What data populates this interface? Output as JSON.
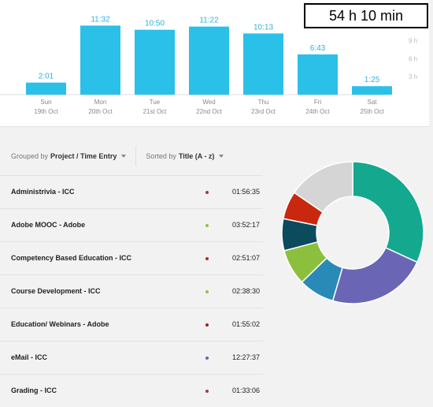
{
  "total": {
    "label": "54 h 10 min"
  },
  "chart_data": {
    "type": "bar",
    "categories": [
      "Sun",
      "Mon",
      "Tue",
      "Wed",
      "Thu",
      "Fri",
      "Sat"
    ],
    "dates": [
      "19th Oct",
      "20th Oct",
      "21st Oct",
      "22nd Oct",
      "23rd Oct",
      "24th Oct",
      "25th Oct"
    ],
    "values": [
      2.017,
      11.533,
      10.833,
      11.367,
      10.217,
      6.717,
      1.417
    ],
    "value_labels": [
      "2:01",
      "11:32",
      "10:50",
      "11:22",
      "10:13",
      "6:43",
      "1:25"
    ],
    "y_ticks": [
      "3 h",
      "6 h",
      "9 h"
    ],
    "ylim": [
      0,
      15.8
    ],
    "bar_color": "#2bc0e8"
  },
  "toolbar": {
    "grouped_label": "Grouped by",
    "grouped_value": "Project / Time Entry",
    "sorted_label": "Sorted by",
    "sorted_value": "Title (A - z)"
  },
  "entries": [
    {
      "name": "Administrivia - ICC",
      "time": "01:56:35",
      "color": "#9b3a5a"
    },
    {
      "name": "Adobe MOOC - Adobe",
      "time": "03:52:17",
      "color": "#8cc63e"
    },
    {
      "name": "Competency Based Education - ICC",
      "time": "02:51:07",
      "color": "#c0281c"
    },
    {
      "name": "Course Development - ICC",
      "time": "02:38:30",
      "color": "#8cc63e"
    },
    {
      "name": "Education/ Webinars - Adobe",
      "time": "01:55:02",
      "color": "#a0201c"
    },
    {
      "name": "eMail - ICC",
      "time": "12:27:37",
      "color": "#6c64b2"
    },
    {
      "name": "Grading - ICC",
      "time": "01:33:06",
      "color": "#9b3a5a"
    }
  ],
  "donut": {
    "slices": [
      {
        "value": 35,
        "color": "#14a98e"
      },
      {
        "value": 25,
        "color": "#6a66b5"
      },
      {
        "value": 9,
        "color": "#2a8ab7"
      },
      {
        "value": 9,
        "color": "#8cbf3e"
      },
      {
        "value": 8,
        "color": "#0c4a5e"
      },
      {
        "value": 7,
        "color": "#c9280e"
      },
      {
        "value": 17,
        "color": "#d5d5d5"
      }
    ]
  }
}
